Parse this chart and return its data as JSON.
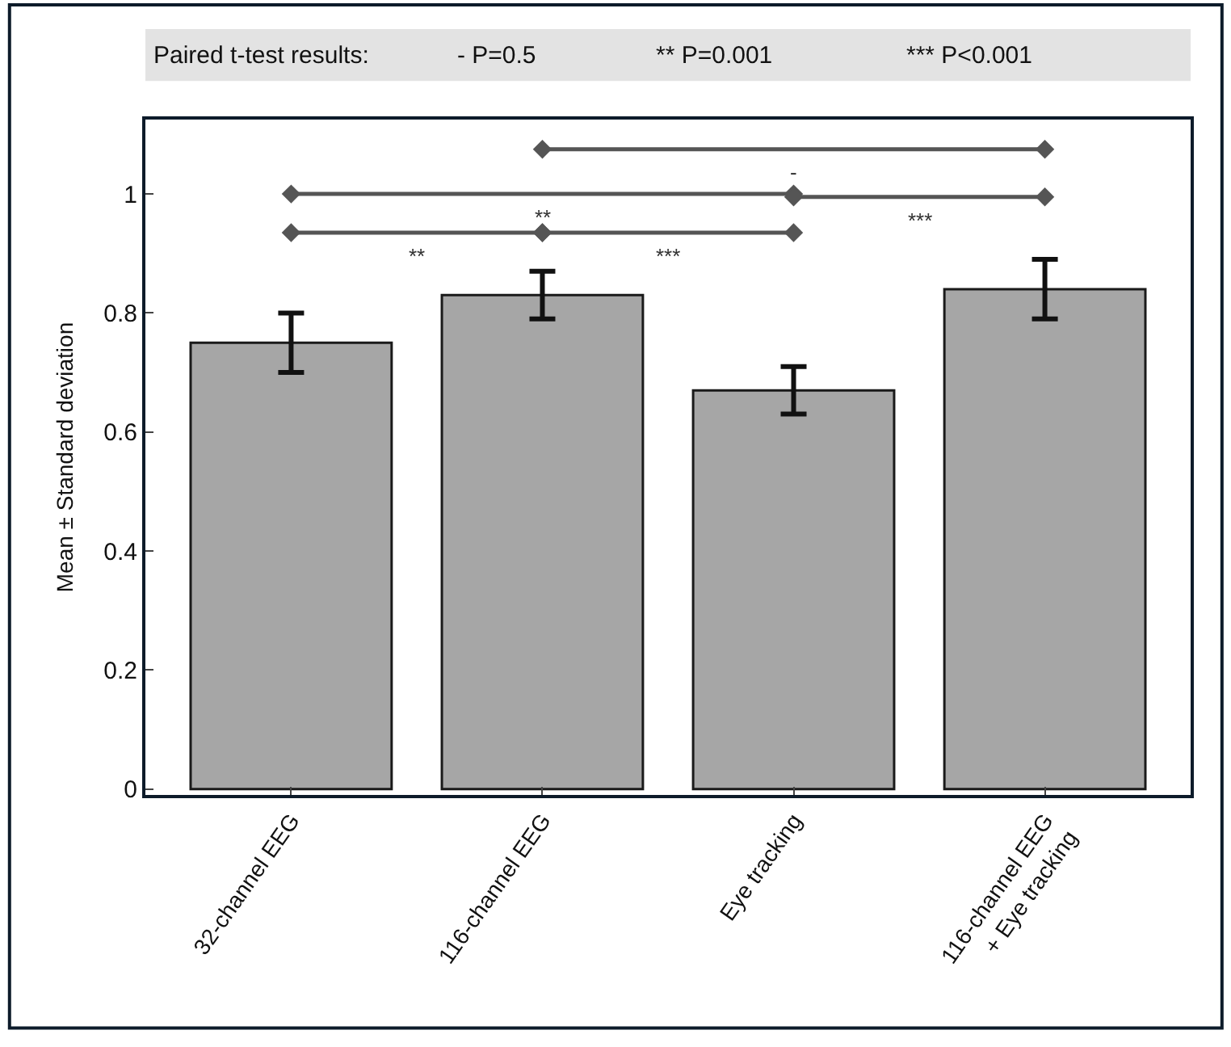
{
  "chart_data": {
    "type": "bar",
    "ylabel": "Mean ± Standard deviation",
    "categories": [
      "32-channel EEG",
      "116-channel EEG",
      "Eye tracking",
      "116-channel EEG\n+ Eye tracking"
    ],
    "values": [
      0.75,
      0.83,
      0.67,
      0.84
    ],
    "errors": [
      0.05,
      0.04,
      0.04,
      0.05
    ],
    "color": "#a6a6a6",
    "ylim": [
      -0.01,
      1.125
    ],
    "yticks": [
      0,
      0.2,
      0.4,
      0.6,
      0.8,
      1
    ],
    "annotations": [
      "Paired t-test results:",
      "- P=0.5",
      "** P=0.001",
      "*** P<0.001",
      "-",
      "**",
      "***",
      "**",
      "***"
    ]
  }
}
